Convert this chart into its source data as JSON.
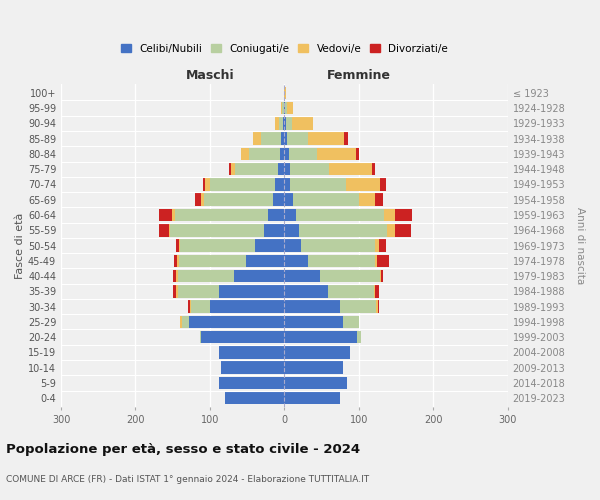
{
  "age_groups": [
    "0-4",
    "5-9",
    "10-14",
    "15-19",
    "20-24",
    "25-29",
    "30-34",
    "35-39",
    "40-44",
    "45-49",
    "50-54",
    "55-59",
    "60-64",
    "65-69",
    "70-74",
    "75-79",
    "80-84",
    "85-89",
    "90-94",
    "95-99",
    "100+"
  ],
  "birth_years": [
    "2019-2023",
    "2014-2018",
    "2009-2013",
    "2004-2008",
    "1999-2003",
    "1994-1998",
    "1989-1993",
    "1984-1988",
    "1979-1983",
    "1974-1978",
    "1969-1973",
    "1964-1968",
    "1959-1963",
    "1954-1958",
    "1949-1953",
    "1944-1948",
    "1939-1943",
    "1934-1938",
    "1929-1933",
    "1924-1928",
    "≤ 1923"
  ],
  "maschi": {
    "celibi": [
      80,
      88,
      85,
      88,
      112,
      128,
      100,
      88,
      68,
      52,
      40,
      28,
      22,
      16,
      12,
      8,
      6,
      4,
      2,
      1,
      0
    ],
    "coniugati": [
      0,
      0,
      0,
      0,
      2,
      10,
      25,
      55,
      75,
      90,
      100,
      125,
      125,
      92,
      88,
      58,
      42,
      28,
      5,
      2,
      0
    ],
    "vedovi": [
      0,
      0,
      0,
      0,
      0,
      2,
      2,
      2,
      2,
      2,
      2,
      2,
      4,
      4,
      6,
      6,
      10,
      10,
      5,
      2,
      0
    ],
    "divorziati": [
      0,
      0,
      0,
      0,
      0,
      0,
      2,
      5,
      4,
      4,
      4,
      14,
      18,
      8,
      4,
      2,
      0,
      0,
      0,
      0,
      0
    ]
  },
  "femmine": {
    "nubili": [
      75,
      84,
      78,
      88,
      98,
      78,
      75,
      58,
      48,
      32,
      22,
      20,
      16,
      12,
      8,
      8,
      6,
      4,
      2,
      1,
      0
    ],
    "coniugate": [
      0,
      0,
      0,
      0,
      5,
      22,
      48,
      62,
      80,
      90,
      100,
      118,
      118,
      88,
      75,
      52,
      38,
      28,
      8,
      2,
      0
    ],
    "vedove": [
      0,
      0,
      0,
      0,
      0,
      0,
      2,
      2,
      2,
      2,
      5,
      10,
      15,
      22,
      45,
      58,
      52,
      48,
      28,
      8,
      2
    ],
    "divorziate": [
      0,
      0,
      0,
      0,
      0,
      0,
      2,
      5,
      2,
      16,
      10,
      22,
      22,
      10,
      8,
      4,
      4,
      5,
      0,
      0,
      0
    ]
  },
  "colors": {
    "celibi": "#4472c4",
    "coniugati": "#b8cfa0",
    "vedovi": "#f0c060",
    "divorziati": "#cc2222"
  },
  "title": "Popolazione per età, sesso e stato civile - 2024",
  "subtitle": "COMUNE DI ARCE (FR) - Dati ISTAT 1° gennaio 2024 - Elaborazione TUTTITALIA.IT",
  "xlabel_maschi": "Maschi",
  "xlabel_femmine": "Femmine",
  "ylabel": "Fasce di età",
  "ylabel_right": "Anni di nascita",
  "xlim": 300,
  "legend_labels": [
    "Celibi/Nubili",
    "Coniugati/e",
    "Vedovi/e",
    "Divorziati/e"
  ],
  "background_color": "#f0f0f0"
}
